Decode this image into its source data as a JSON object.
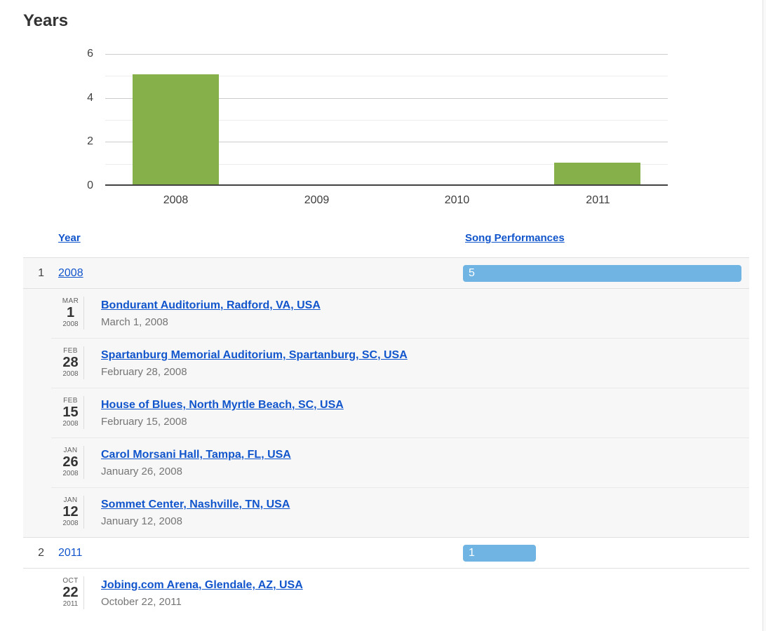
{
  "title": "Years",
  "colors": {
    "chart_bar_green": "#85b04a",
    "performance_bar_blue": "#70b4e4",
    "link_blue": "#1155cc"
  },
  "chart_data": {
    "type": "bar",
    "title": "Years",
    "categories": [
      "2008",
      "2009",
      "2010",
      "2011"
    ],
    "values": [
      5,
      0,
      0,
      1
    ],
    "xlabel": "",
    "ylabel": "",
    "ylim": [
      0,
      6
    ],
    "yticks": [
      0,
      2,
      4,
      6
    ],
    "grid": true,
    "legend_position": "none",
    "bar_color": "#85b04a"
  },
  "table": {
    "columns": [
      {
        "label": "Year"
      },
      {
        "label": "Song Performances"
      }
    ],
    "max_value": 5,
    "groups": [
      {
        "index": "1",
        "year": "2008",
        "year_underlined": true,
        "performances": 5,
        "shaded": true,
        "concerts": [
          {
            "month": "MAR",
            "day": "1",
            "year": "2008",
            "venue": "Bondurant Auditorium, Radford, VA, USA",
            "date_text": "March 1, 2008"
          },
          {
            "month": "FEB",
            "day": "28",
            "year": "2008",
            "venue": "Spartanburg Memorial Auditorium, Spartanburg, SC, USA",
            "date_text": "February 28, 2008"
          },
          {
            "month": "FEB",
            "day": "15",
            "year": "2008",
            "venue": "House of Blues, North Myrtle Beach, SC, USA",
            "date_text": "February 15, 2008"
          },
          {
            "month": "JAN",
            "day": "26",
            "year": "2008",
            "venue": "Carol Morsani Hall, Tampa, FL, USA",
            "date_text": "January 26, 2008"
          },
          {
            "month": "JAN",
            "day": "12",
            "year": "2008",
            "venue": "Sommet Center, Nashville, TN, USA",
            "date_text": "January 12, 2008"
          }
        ]
      },
      {
        "index": "2",
        "year": "2011",
        "year_underlined": false,
        "performances": 1,
        "shaded": false,
        "concerts": [
          {
            "month": "OCT",
            "day": "22",
            "year": "2011",
            "venue": "Jobing.com Arena, Glendale, AZ, USA",
            "date_text": "October 22, 2011"
          }
        ]
      }
    ]
  }
}
